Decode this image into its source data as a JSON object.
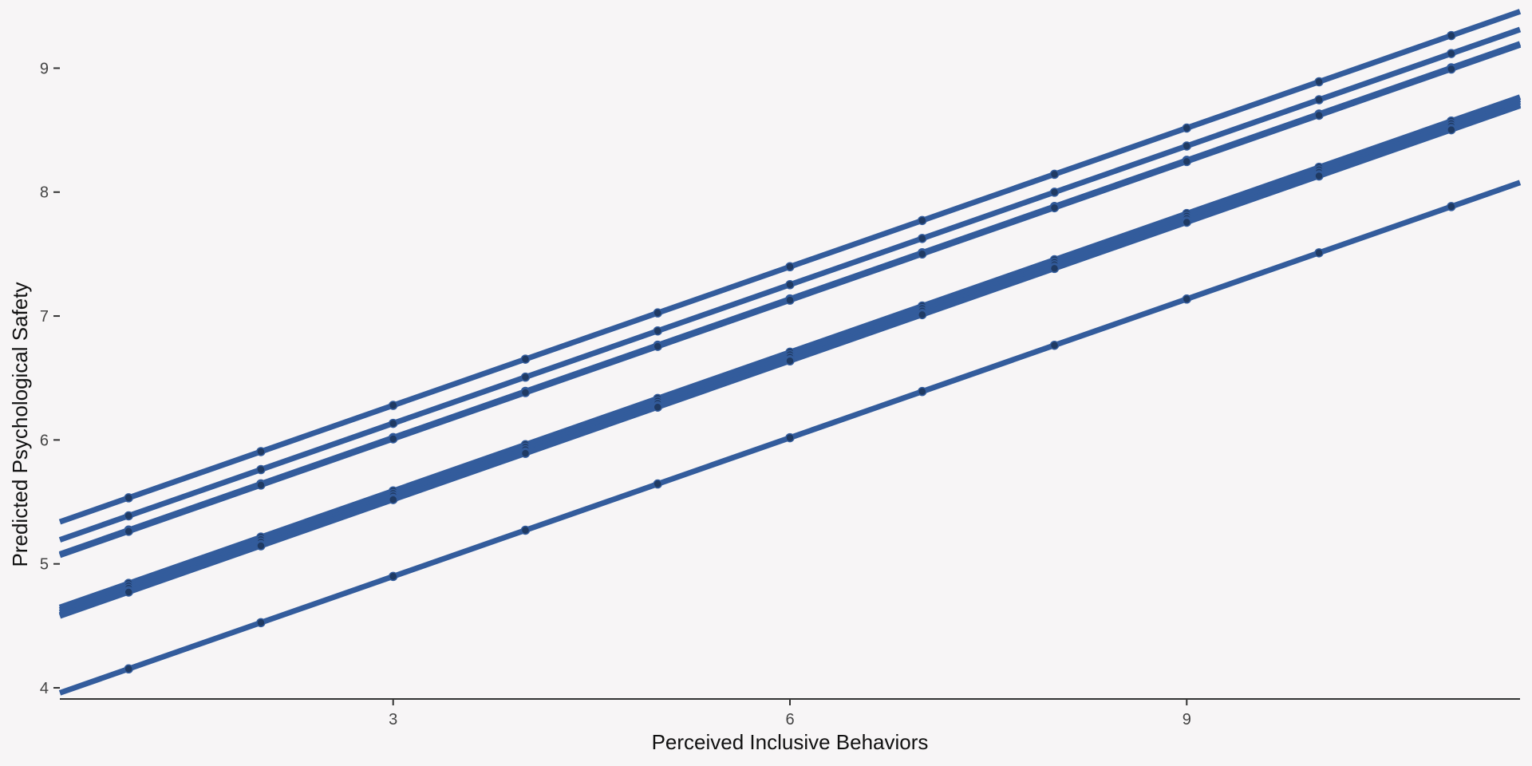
{
  "chart_data": {
    "type": "line",
    "title": "",
    "xlabel": "Perceived Inclusive Behaviors",
    "ylabel": "Predicted Psychological Safety",
    "xlim": [
      0.48,
      11.52
    ],
    "ylim": [
      3.91,
      9.55
    ],
    "x_ticks": [
      3,
      6,
      9
    ],
    "x_tick_labels": [
      "3",
      "6",
      "9"
    ],
    "y_ticks": [
      4,
      5,
      6,
      7,
      8,
      9
    ],
    "y_tick_labels": [
      "4",
      "5",
      "6",
      "7",
      "8",
      "9"
    ],
    "grid": false,
    "legend": "none",
    "point_x": [
      1,
      2,
      3,
      4,
      5,
      6,
      7,
      8,
      9,
      10,
      11
    ],
    "series_color": "#335c9c",
    "point_color": "#1f3a63",
    "series": [
      {
        "intercept": 5.16,
        "slope": 0.373
      },
      {
        "intercept": 5.015,
        "slope": 0.373
      },
      {
        "intercept": 4.9,
        "slope": 0.373
      },
      {
        "intercept": 4.89,
        "slope": 0.373
      },
      {
        "intercept": 4.47,
        "slope": 0.373
      },
      {
        "intercept": 4.45,
        "slope": 0.373
      },
      {
        "intercept": 4.43,
        "slope": 0.373
      },
      {
        "intercept": 4.41,
        "slope": 0.373
      },
      {
        "intercept": 4.4,
        "slope": 0.373
      },
      {
        "intercept": 3.78,
        "slope": 0.373
      }
    ]
  }
}
